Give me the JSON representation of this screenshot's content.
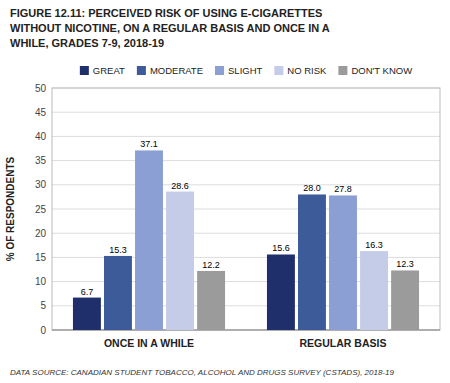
{
  "chart_data": {
    "type": "bar",
    "title": [
      "FIGURE 12.11: PERCEIVED RISK OF USING E-CIGARETTES",
      "WITHOUT NICOTINE, ON A REGULAR BASIS AND ONCE IN A",
      "WHILE, GRADES 7-9, 2018-19"
    ],
    "categories": [
      "ONCE IN A WHILE",
      "REGULAR BASIS"
    ],
    "series": [
      {
        "name": "GREAT",
        "color": "#1f2f6b",
        "values": [
          6.7,
          15.6
        ]
      },
      {
        "name": "MODERATE",
        "color": "#3d5a99",
        "values": [
          15.3,
          28.0
        ],
        "value_labels": [
          "15.3",
          "28.0"
        ]
      },
      {
        "name": "SLIGHT",
        "color": "#8b9fd4",
        "values": [
          37.1,
          27.8
        ]
      },
      {
        "name": "NO RISK",
        "color": "#c5cce8",
        "values": [
          28.6,
          16.3
        ]
      },
      {
        "name": "DON'T KNOW",
        "color": "#9b9b9b",
        "values": [
          12.2,
          12.3
        ]
      }
    ],
    "y_label": "% OF RESPONDENTS",
    "ylim": [
      0,
      50
    ],
    "yticks": [
      0,
      5,
      10,
      15,
      20,
      25,
      30,
      35,
      40,
      45,
      50
    ],
    "grid": true,
    "legend": "top",
    "data_labels": true,
    "footnote": "DATA SOURCE: CANADIAN STUDENT TOBACCO, ALCOHOL AND DRUGS SURVEY (CSTADS), 2018-19"
  }
}
